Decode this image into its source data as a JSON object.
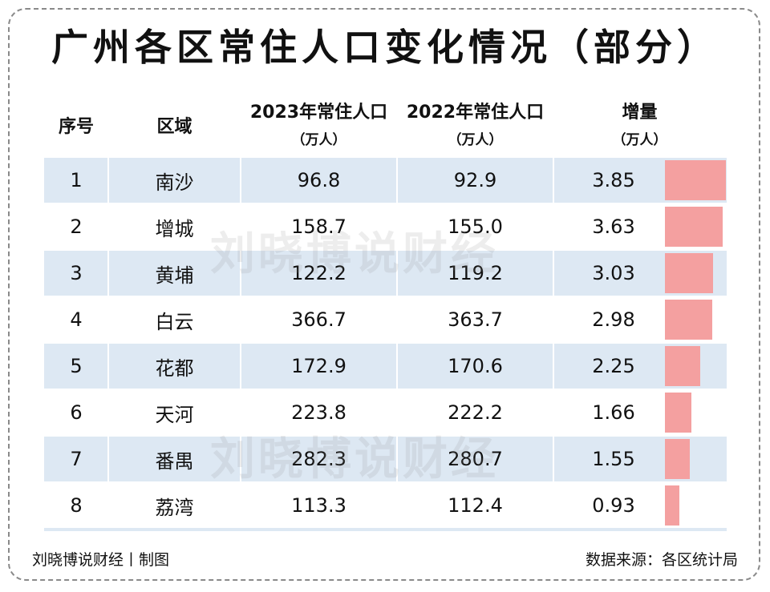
{
  "title": "广州各区常住人口变化情况（部分）",
  "watermark": "刘晓博说财经",
  "footer": {
    "left": "刘晓博说财经丨制图",
    "right": "数据来源：各区统计局"
  },
  "headers": {
    "index": "序号",
    "district": "区域",
    "pop2023": "2023年常住人口",
    "pop2022": "2022年常住人口",
    "increase": "增量",
    "unit": "（万人）"
  },
  "colors": {
    "row_shade": "#dde8f3",
    "bar": "#f4a0a0"
  },
  "chart_data": {
    "type": "table",
    "columns": [
      "序号",
      "区域",
      "2023年常住人口（万人）",
      "2022年常住人口（万人）",
      "增量（万人）"
    ],
    "rows": [
      {
        "no": "1",
        "district": "南沙",
        "pop2023": "96.8",
        "pop2022": "92.9",
        "increase": "3.85"
      },
      {
        "no": "2",
        "district": "增城",
        "pop2023": "158.7",
        "pop2022": "155.0",
        "increase": "3.63"
      },
      {
        "no": "3",
        "district": "黄埔",
        "pop2023": "122.2",
        "pop2022": "119.2",
        "increase": "3.03"
      },
      {
        "no": "4",
        "district": "白云",
        "pop2023": "366.7",
        "pop2022": "363.7",
        "increase": "2.98"
      },
      {
        "no": "5",
        "district": "花都",
        "pop2023": "172.9",
        "pop2022": "170.6",
        "increase": "2.25"
      },
      {
        "no": "6",
        "district": "天河",
        "pop2023": "223.8",
        "pop2022": "222.2",
        "increase": "1.66"
      },
      {
        "no": "7",
        "district": "番禺",
        "pop2023": "282.3",
        "pop2022": "280.7",
        "increase": "1.55"
      },
      {
        "no": "8",
        "district": "荔湾",
        "pop2023": "113.3",
        "pop2022": "112.4",
        "increase": "0.93"
      }
    ],
    "bar_series": {
      "name": "增量",
      "values": [
        3.85,
        3.63,
        3.03,
        2.98,
        2.25,
        1.66,
        1.55,
        0.93
      ]
    }
  }
}
